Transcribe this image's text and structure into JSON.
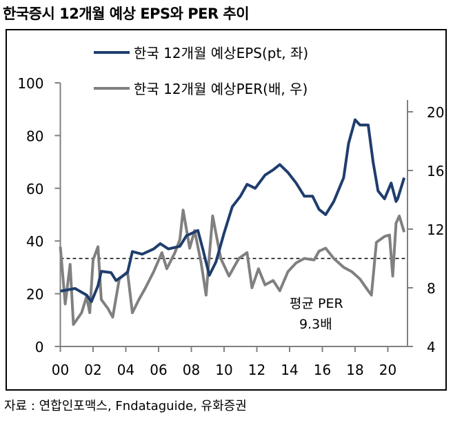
{
  "title": "한국증시 12개월 예상 EPS와 PER  추이",
  "source": "자료 : 연합인포맥스, Fndataguide, 유화증권",
  "chart_data": {
    "type": "line",
    "title": "한국증시 12개월 예상 EPS와 PER  추이",
    "xlabel": "",
    "ylabel": "",
    "x_tick_labels": [
      "00",
      "02",
      "04",
      "06",
      "08",
      "10",
      "12",
      "14",
      "16",
      "18",
      "20"
    ],
    "x_ticks": [
      2000,
      2002,
      2004,
      2006,
      2008,
      2010,
      2012,
      2014,
      2016,
      2018,
      2020
    ],
    "xlim": [
      2000,
      2021.2
    ],
    "y_left": {
      "lim": [
        0,
        100
      ],
      "ticks": [
        0,
        20,
        40,
        60,
        80,
        100
      ]
    },
    "y_right": {
      "lim": [
        4,
        22
      ],
      "ticks": [
        4,
        8,
        12,
        16,
        20
      ]
    },
    "legend_position": "top-center",
    "grid": false,
    "series": [
      {
        "name": "한국 12개월 예상EPS(pt, 좌)",
        "axis": "left",
        "color": "#1f3d6d",
        "points": [
          [
            2000,
            21
          ],
          [
            2000.9,
            22
          ],
          [
            2001.6,
            19.5
          ],
          [
            2001.9,
            17
          ],
          [
            2002.3,
            23
          ],
          [
            2002.5,
            28.5
          ],
          [
            2003.1,
            28
          ],
          [
            2003.4,
            25
          ],
          [
            2004.1,
            28
          ],
          [
            2004.4,
            36
          ],
          [
            2005.0,
            35
          ],
          [
            2005.7,
            37
          ],
          [
            2006.1,
            39
          ],
          [
            2006.6,
            37
          ],
          [
            2007.3,
            38
          ],
          [
            2007.7,
            42
          ],
          [
            2008.4,
            44
          ],
          [
            2008.7,
            37
          ],
          [
            2009.1,
            27
          ],
          [
            2009.5,
            32
          ],
          [
            2010.0,
            43
          ],
          [
            2010.5,
            53
          ],
          [
            2011.0,
            57
          ],
          [
            2011.4,
            61.5
          ],
          [
            2011.9,
            60
          ],
          [
            2012.5,
            65
          ],
          [
            2013.0,
            67
          ],
          [
            2013.4,
            69
          ],
          [
            2013.9,
            66
          ],
          [
            2014.4,
            62
          ],
          [
            2014.9,
            57
          ],
          [
            2015.4,
            57
          ],
          [
            2015.8,
            52
          ],
          [
            2016.2,
            50
          ],
          [
            2016.7,
            55
          ],
          [
            2017.3,
            64
          ],
          [
            2017.6,
            77
          ],
          [
            2018.0,
            86
          ],
          [
            2018.3,
            84
          ],
          [
            2018.8,
            84
          ],
          [
            2019.1,
            70
          ],
          [
            2019.4,
            59
          ],
          [
            2019.8,
            56
          ],
          [
            2020.2,
            62
          ],
          [
            2020.5,
            55
          ],
          [
            2020.6,
            56
          ],
          [
            2021.0,
            64
          ]
        ]
      },
      {
        "name": "한국 12개월 예상PER(배, 우)",
        "axis": "right",
        "color": "#808080",
        "points": [
          [
            2000,
            10.8
          ],
          [
            2000.3,
            6.9
          ],
          [
            2000.6,
            9.6
          ],
          [
            2000.8,
            5.5
          ],
          [
            2001.3,
            6.3
          ],
          [
            2001.6,
            7.4
          ],
          [
            2001.8,
            6.3
          ],
          [
            2002.0,
            9.9
          ],
          [
            2002.3,
            10.8
          ],
          [
            2002.5,
            7.2
          ],
          [
            2002.9,
            6.6
          ],
          [
            2003.2,
            6.0
          ],
          [
            2003.6,
            8.6
          ],
          [
            2004.1,
            9.1
          ],
          [
            2004.4,
            6.3
          ],
          [
            2004.8,
            7.2
          ],
          [
            2005.2,
            8.0
          ],
          [
            2005.7,
            9.1
          ],
          [
            2006.2,
            10.4
          ],
          [
            2006.5,
            9.3
          ],
          [
            2007.0,
            10.4
          ],
          [
            2007.3,
            11.3
          ],
          [
            2007.5,
            13.3
          ],
          [
            2007.9,
            10.7
          ],
          [
            2008.2,
            11.9
          ],
          [
            2008.6,
            9.7
          ],
          [
            2008.9,
            7.5
          ],
          [
            2009.3,
            12.9
          ],
          [
            2009.8,
            10.0
          ],
          [
            2010.3,
            8.8
          ],
          [
            2010.9,
            10.0
          ],
          [
            2011.4,
            10.4
          ],
          [
            2011.7,
            8.0
          ],
          [
            2012.1,
            9.3
          ],
          [
            2012.5,
            8.2
          ],
          [
            2013.0,
            8.5
          ],
          [
            2013.4,
            7.8
          ],
          [
            2013.9,
            9.1
          ],
          [
            2014.4,
            9.7
          ],
          [
            2014.9,
            10.0
          ],
          [
            2015.5,
            9.9
          ],
          [
            2015.8,
            10.5
          ],
          [
            2016.2,
            10.7
          ],
          [
            2016.7,
            10.0
          ],
          [
            2017.3,
            9.4
          ],
          [
            2017.8,
            9.1
          ],
          [
            2018.3,
            8.6
          ],
          [
            2018.8,
            7.8
          ],
          [
            2019.0,
            7.5
          ],
          [
            2019.3,
            11.1
          ],
          [
            2019.8,
            11.5
          ],
          [
            2020.1,
            11.6
          ],
          [
            2020.3,
            8.8
          ],
          [
            2020.5,
            12.4
          ],
          [
            2020.7,
            12.9
          ],
          [
            2021.0,
            11.8
          ]
        ]
      }
    ],
    "reference_line": {
      "axis": "right",
      "value": 10,
      "style": "dashed",
      "color": "#000000"
    },
    "annotation": {
      "line1": "평균 PER",
      "line2": "9.3배"
    }
  }
}
